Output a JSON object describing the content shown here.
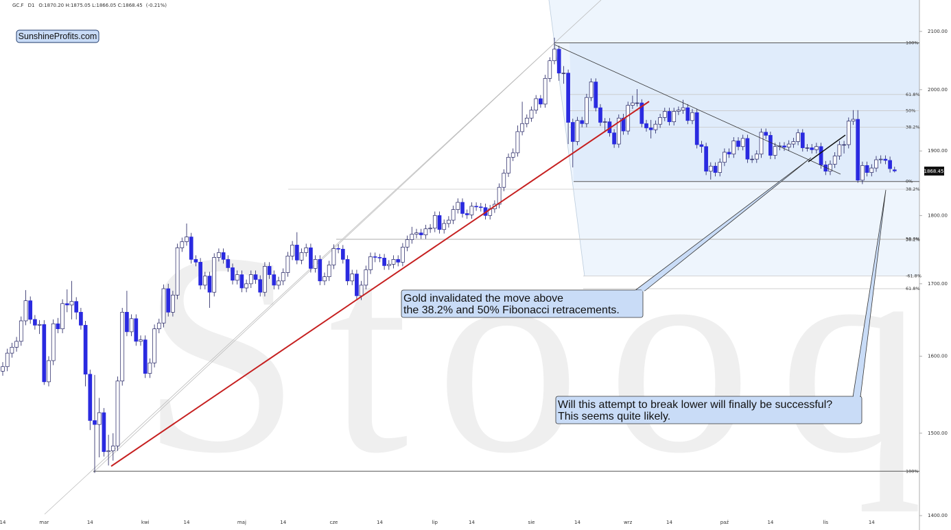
{
  "header": {
    "symbol": "GC.F",
    "interval": "D1",
    "ohlc": "O:1870.20 H:1875.05 L:1866.05 C:1868.45",
    "change": "(-0.21%)"
  },
  "badge": "SunshineProfits.com",
  "watermark": "Stooq",
  "annotations": [
    {
      "lines": [
        "Gold invalidated the move above",
        "the 38.2% and 50% Fibonacci retracements."
      ]
    },
    {
      "lines": [
        "Will this attempt to break lower will finally be successful?",
        "This seems quite likely."
      ]
    }
  ],
  "chart_data": {
    "type": "candlestick",
    "log": true,
    "up_color": "#ffffff",
    "down_color": "#2a2ae0",
    "outline": "#1c1c5e",
    "ylim": [
      1388,
      2156
    ],
    "yticks": [
      {
        "value": 1400,
        "label": "1400.00"
      },
      {
        "value": 1500,
        "label": "1500.00"
      },
      {
        "value": 1600,
        "label": "1600.00"
      },
      {
        "value": 1700,
        "label": "1700.00"
      },
      {
        "value": 1800,
        "label": "1800.00"
      },
      {
        "value": 1900,
        "label": "1900.00"
      },
      {
        "value": 2000,
        "label": "2000.00"
      },
      {
        "value": 2100,
        "label": "2100.00"
      }
    ],
    "categories": [
      "14",
      null,
      null,
      null,
      null,
      null,
      null,
      null,
      null,
      "mar",
      null,
      null,
      null,
      null,
      null,
      null,
      null,
      null,
      null,
      "14",
      null,
      null,
      null,
      null,
      null,
      null,
      null,
      null,
      null,
      null,
      null,
      "kwi",
      null,
      null,
      null,
      null,
      null,
      null,
      null,
      null,
      "14",
      null,
      null,
      null,
      null,
      null,
      null,
      null,
      null,
      null,
      null,
      null,
      "maj",
      null,
      null,
      null,
      null,
      null,
      null,
      null,
      null,
      "14",
      null,
      null,
      null,
      null,
      null,
      null,
      null,
      null,
      null,
      null,
      "cze",
      null,
      null,
      null,
      null,
      null,
      null,
      null,
      null,
      null,
      "14",
      null,
      null,
      null,
      null,
      null,
      null,
      null,
      null,
      null,
      null,
      null,
      "lip",
      null,
      null,
      null,
      null,
      null,
      null,
      null,
      "14",
      null,
      null,
      null,
      null,
      null,
      null,
      null,
      null,
      null,
      null,
      null,
      null,
      "sie",
      null,
      null,
      null,
      null,
      null,
      null,
      null,
      null,
      null,
      "14",
      null,
      null,
      null,
      null,
      null,
      null,
      null,
      null,
      null,
      null,
      "wrz",
      null,
      null,
      null,
      null,
      null,
      null,
      null,
      null,
      "14",
      null,
      null,
      null,
      null,
      null,
      null,
      null,
      null,
      null,
      null,
      null,
      "paź",
      null,
      null,
      null,
      null,
      null,
      null,
      null,
      null,
      null,
      "14",
      null,
      null,
      null,
      null,
      null,
      null,
      null,
      null,
      null,
      null,
      null,
      "lis",
      null,
      null,
      null,
      null,
      null,
      null,
      null,
      null,
      null,
      "14",
      null,
      null,
      null,
      null,
      null
    ],
    "open": [
      1580,
      1586,
      1604,
      1612,
      1620,
      1648,
      1676,
      1650,
      1642,
      1643,
      1566,
      1594,
      1644,
      1637,
      1672,
      1670,
      1675,
      1660,
      1642,
      1576,
      1516,
      1511,
      1526,
      1477,
      1478,
      1484,
      1567,
      1660,
      1633,
      1651,
      1620,
      1622,
      1577,
      1591,
      1637,
      1645,
      1693,
      1660,
      1684,
      1752,
      1761,
      1768,
      1735,
      1731,
      1698,
      1711,
      1688,
      1738,
      1745,
      1735,
      1723,
      1705,
      1713,
      1694,
      1700,
      1713,
      1706,
      1688,
      1725,
      1713,
      1698,
      1704,
      1716,
      1740,
      1756,
      1734,
      1745,
      1752,
      1722,
      1735,
      1704,
      1710,
      1727,
      1751,
      1750,
      1735,
      1704,
      1714,
      1683,
      1698,
      1720,
      1739,
      1738,
      1737,
      1726,
      1728,
      1735,
      1731,
      1753,
      1764,
      1772,
      1774,
      1771,
      1780,
      1781,
      1800,
      1779,
      1788,
      1793,
      1809,
      1820,
      1803,
      1801,
      1814,
      1813,
      1812,
      1800,
      1810,
      1817,
      1843,
      1865,
      1890,
      1897,
      1931,
      1944,
      1953,
      1966,
      1985,
      1976,
      2019,
      2049,
      2069,
      2028,
      2028,
      1946,
      1915,
      1949,
      1944,
      1987,
      2013,
      1970,
      1946,
      1947,
      1929,
      1911,
      1953,
      1932,
      1974,
      1978,
      1978,
      1944,
      1937,
      1934,
      1943,
      1954,
      1964,
      1947,
      1964,
      1966,
      1970,
      1949,
      1962,
      1910,
      1907,
      1868,
      1876,
      1866,
      1882,
      1898,
      1895,
      1916,
      1907,
      1920,
      1887,
      1887,
      1895,
      1930,
      1925,
      1893,
      1907,
      1908,
      1906,
      1911,
      1915,
      1929,
      1905,
      1905,
      1902,
      1907,
      1878,
      1868,
      1879,
      1892,
      1910,
      1910,
      1948,
      1951,
      1854,
      1877,
      1866,
      1873,
      1886,
      1887,
      1885,
      1870.2
    ],
    "high": [
      1592,
      1610,
      1618,
      1626,
      1654,
      1691,
      1682,
      1656,
      1649,
      1649,
      1600,
      1650,
      1652,
      1678,
      1692,
      1704,
      1681,
      1666,
      1648,
      1582,
      1575,
      1545,
      1532,
      1498,
      1500,
      1573,
      1666,
      1690,
      1657,
      1657,
      1628,
      1628,
      1597,
      1643,
      1651,
      1699,
      1700,
      1690,
      1758,
      1767,
      1788,
      1774,
      1741,
      1737,
      1717,
      1717,
      1744,
      1751,
      1751,
      1741,
      1729,
      1719,
      1719,
      1706,
      1719,
      1719,
      1712,
      1731,
      1731,
      1719,
      1710,
      1722,
      1746,
      1762,
      1775,
      1751,
      1758,
      1758,
      1741,
      1741,
      1716,
      1733,
      1757,
      1757,
      1756,
      1741,
      1720,
      1720,
      1704,
      1726,
      1745,
      1745,
      1743,
      1743,
      1734,
      1741,
      1741,
      1759,
      1770,
      1783,
      1780,
      1780,
      1786,
      1787,
      1806,
      1806,
      1794,
      1799,
      1815,
      1826,
      1826,
      1809,
      1820,
      1820,
      1819,
      1818,
      1816,
      1823,
      1849,
      1871,
      1896,
      1904,
      1941,
      1980,
      1959,
      1972,
      1991,
      1991,
      2025,
      2055,
      2089,
      2075,
      2040,
      2034,
      1952,
      1955,
      1955,
      1993,
      2019,
      2019,
      1976,
      1953,
      1953,
      1935,
      1959,
      1960,
      1980,
      1990,
      2001,
      1984,
      1950,
      1950,
      1949,
      1960,
      1970,
      1970,
      1970,
      1972,
      1983,
      1976,
      1968,
      1968,
      1916,
      1913,
      1882,
      1882,
      1888,
      1904,
      1904,
      1922,
      1922,
      1926,
      1926,
      1893,
      1901,
      1936,
      1936,
      1931,
      1913,
      1914,
      1914,
      1917,
      1921,
      1935,
      1935,
      1911,
      1911,
      1913,
      1913,
      1884,
      1885,
      1898,
      1916,
      1916,
      1954,
      1966,
      1966,
      1883,
      1883,
      1879,
      1892,
      1893,
      1893,
      1891,
      1875.05
    ],
    "low": [
      1574,
      1580,
      1598,
      1606,
      1614,
      1642,
      1644,
      1636,
      1630,
      1562,
      1560,
      1588,
      1631,
      1631,
      1660,
      1650,
      1650,
      1636,
      1560,
      1504,
      1451,
      1470,
      1471,
      1460,
      1466,
      1478,
      1561,
      1627,
      1627,
      1614,
      1614,
      1571,
      1571,
      1585,
      1631,
      1639,
      1654,
      1654,
      1678,
      1746,
      1755,
      1729,
      1725,
      1692,
      1692,
      1666,
      1682,
      1732,
      1729,
      1717,
      1699,
      1699,
      1688,
      1688,
      1694,
      1700,
      1682,
      1682,
      1707,
      1692,
      1692,
      1698,
      1710,
      1734,
      1728,
      1728,
      1739,
      1716,
      1716,
      1698,
      1698,
      1704,
      1721,
      1744,
      1729,
      1698,
      1698,
      1677,
      1677,
      1692,
      1714,
      1731,
      1731,
      1720,
      1720,
      1722,
      1725,
      1725,
      1747,
      1758,
      1766,
      1765,
      1765,
      1774,
      1775,
      1773,
      1773,
      1782,
      1787,
      1803,
      1797,
      1795,
      1795,
      1807,
      1806,
      1794,
      1794,
      1804,
      1811,
      1837,
      1859,
      1884,
      1891,
      1925,
      1938,
      1947,
      1960,
      1970,
      1970,
      2013,
      2043,
      2015,
      2010,
      1911,
      1874,
      1909,
      1938,
      1938,
      1981,
      1964,
      1940,
      1930,
      1923,
      1905,
      1905,
      1926,
      1926,
      1968,
      1972,
      1938,
      1931,
      1920,
      1928,
      1937,
      1948,
      1941,
      1941,
      1958,
      1960,
      1943,
      1943,
      1904,
      1897,
      1862,
      1855,
      1860,
      1860,
      1876,
      1889,
      1889,
      1901,
      1901,
      1881,
      1881,
      1881,
      1889,
      1919,
      1887,
      1887,
      1901,
      1900,
      1900,
      1905,
      1909,
      1899,
      1899,
      1896,
      1896,
      1872,
      1862,
      1862,
      1873,
      1886,
      1896,
      1904,
      1942,
      1850,
      1848,
      1860,
      1860,
      1867,
      1880,
      1879,
      1866,
      1866.05
    ],
    "close": [
      1586,
      1604,
      1612,
      1620,
      1648,
      1676,
      1650,
      1642,
      1643,
      1566,
      1594,
      1644,
      1637,
      1672,
      1670,
      1675,
      1660,
      1642,
      1576,
      1516,
      1511,
      1526,
      1477,
      1478,
      1484,
      1567,
      1660,
      1633,
      1651,
      1620,
      1622,
      1577,
      1591,
      1637,
      1645,
      1693,
      1660,
      1684,
      1752,
      1761,
      1768,
      1735,
      1731,
      1698,
      1711,
      1688,
      1738,
      1745,
      1735,
      1723,
      1705,
      1713,
      1694,
      1700,
      1713,
      1706,
      1688,
      1725,
      1713,
      1698,
      1704,
      1716,
      1740,
      1756,
      1734,
      1745,
      1752,
      1722,
      1735,
      1704,
      1710,
      1727,
      1751,
      1750,
      1735,
      1704,
      1714,
      1683,
      1698,
      1720,
      1739,
      1738,
      1737,
      1726,
      1728,
      1735,
      1731,
      1753,
      1764,
      1772,
      1774,
      1771,
      1780,
      1781,
      1800,
      1779,
      1788,
      1793,
      1809,
      1820,
      1803,
      1801,
      1814,
      1813,
      1812,
      1800,
      1810,
      1817,
      1843,
      1865,
      1890,
      1897,
      1931,
      1944,
      1953,
      1966,
      1985,
      1976,
      2019,
      2049,
      2069,
      2028,
      2028,
      1946,
      1915,
      1949,
      1944,
      1987,
      2013,
      1970,
      1946,
      1947,
      1929,
      1911,
      1953,
      1932,
      1974,
      1978,
      1978,
      1944,
      1937,
      1934,
      1943,
      1954,
      1964,
      1947,
      1964,
      1966,
      1970,
      1949,
      1962,
      1910,
      1907,
      1868,
      1876,
      1866,
      1882,
      1898,
      1895,
      1916,
      1907,
      1920,
      1887,
      1887,
      1895,
      1930,
      1925,
      1893,
      1907,
      1908,
      1906,
      1911,
      1915,
      1929,
      1905,
      1905,
      1902,
      1907,
      1878,
      1868,
      1879,
      1892,
      1910,
      1910,
      1948,
      1951,
      1854,
      1877,
      1866,
      1873,
      1886,
      1887,
      1885,
      1872,
      1868.45
    ],
    "fib_levels": [
      {
        "value": 2080,
        "label": "100%"
      },
      {
        "value": 1992,
        "label": "61.8%"
      },
      {
        "value": 1965,
        "label": "50%"
      },
      {
        "value": 1938,
        "label": "38.2%"
      },
      {
        "value": 1852,
        "label": "0%"
      },
      {
        "value": 1840,
        "label": "38.2%"
      },
      {
        "value": 1765,
        "label": "50.0%"
      },
      {
        "value": 1764,
        "label": "38.2%"
      },
      {
        "value": 1711,
        "label": "-61.8%"
      },
      {
        "value": 1693,
        "label": "61.8%"
      },
      {
        "value": 1453,
        "label": "100%"
      }
    ]
  }
}
